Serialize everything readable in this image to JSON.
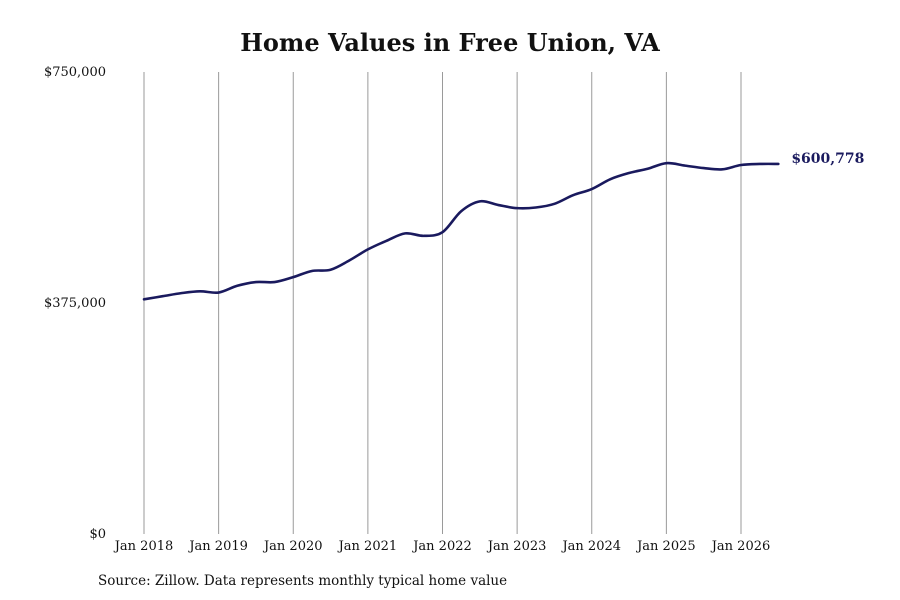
{
  "chart_data": {
    "type": "line",
    "title": "Home Values in Free Union, VA",
    "xlabel": "",
    "ylabel": "",
    "ylim": [
      0,
      750000
    ],
    "y_ticks": [
      {
        "value": 750000,
        "label": "$750,000"
      },
      {
        "value": 375000,
        "label": "$375,000"
      },
      {
        "value": 0,
        "label": "$0"
      }
    ],
    "x_ticks": [
      {
        "value": 2018.0,
        "label": "Jan 2018"
      },
      {
        "value": 2019.0,
        "label": "Jan 2019"
      },
      {
        "value": 2020.0,
        "label": "Jan 2020"
      },
      {
        "value": 2021.0,
        "label": "Jan 2021"
      },
      {
        "value": 2022.0,
        "label": "Jan 2022"
      },
      {
        "value": 2023.0,
        "label": "Jan 2023"
      },
      {
        "value": 2024.0,
        "label": "Jan 2024"
      },
      {
        "value": 2025.0,
        "label": "Jan 2025"
      },
      {
        "value": 2026.0,
        "label": "Jan 2026"
      }
    ],
    "xlim": [
      2018.0,
      2026.5
    ],
    "grid": "vertical",
    "line_color": "#1a1a5e",
    "series": [
      {
        "x": [
          2018.0,
          2018.25,
          2018.5,
          2018.75,
          2019.0,
          2019.25,
          2019.5,
          2019.75,
          2020.0,
          2020.25,
          2020.5,
          2020.75,
          2021.0,
          2021.25,
          2021.5,
          2021.75,
          2022.0,
          2022.25,
          2022.5,
          2022.75,
          2023.0,
          2023.25,
          2023.5,
          2023.75,
          2024.0,
          2024.25,
          2024.5,
          2024.75,
          2025.0,
          2025.25,
          2025.5,
          2025.75,
          2026.0,
          2026.25,
          2026.5
        ],
        "values": [
          381000,
          386000,
          391000,
          394000,
          392000,
          403000,
          409000,
          409000,
          417000,
          427000,
          429000,
          444000,
          462000,
          476000,
          488000,
          484000,
          490000,
          524000,
          540000,
          534000,
          529000,
          530000,
          536000,
          550000,
          560000,
          576000,
          586000,
          593000,
          602000,
          598000,
          594000,
          592000,
          599000,
          600700,
          600778
        ]
      }
    ],
    "end_label": "$600,778"
  },
  "source": "Source: Zillow. Data represents monthly typical home value"
}
